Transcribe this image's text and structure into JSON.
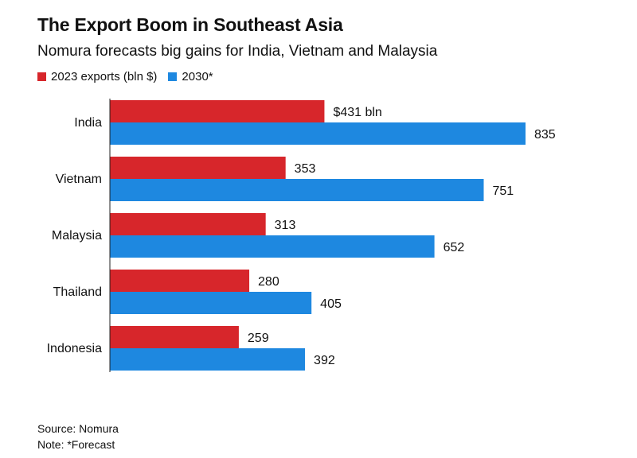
{
  "header": {
    "title": "The Export Boom in Southeast Asia",
    "subtitle": "Nomura forecasts big gains for India, Vietnam and Malaysia"
  },
  "legend": [
    {
      "label": "2023 exports (bln $)",
      "color": "#d7262b"
    },
    {
      "label": "2030*",
      "color": "#1e88e0"
    }
  ],
  "chart_data": {
    "type": "bar",
    "orientation": "horizontal",
    "categories": [
      "India",
      "Vietnam",
      "Malaysia",
      "Thailand",
      "Indonesia"
    ],
    "series": [
      {
        "name": "2023 exports (bln $)",
        "color": "#d7262b",
        "values": [
          431,
          353,
          313,
          280,
          259
        ],
        "labels": [
          "$431 bln",
          "353",
          "313",
          "280",
          "259"
        ]
      },
      {
        "name": "2030*",
        "color": "#1e88e0",
        "values": [
          835,
          751,
          652,
          405,
          392
        ],
        "labels": [
          "835",
          "751",
          "652",
          "405",
          "392"
        ]
      }
    ],
    "xlim": [
      0,
      835
    ],
    "grid": false
  },
  "footer": {
    "source": "Source: Nomura",
    "note": "Note: *Forecast"
  }
}
